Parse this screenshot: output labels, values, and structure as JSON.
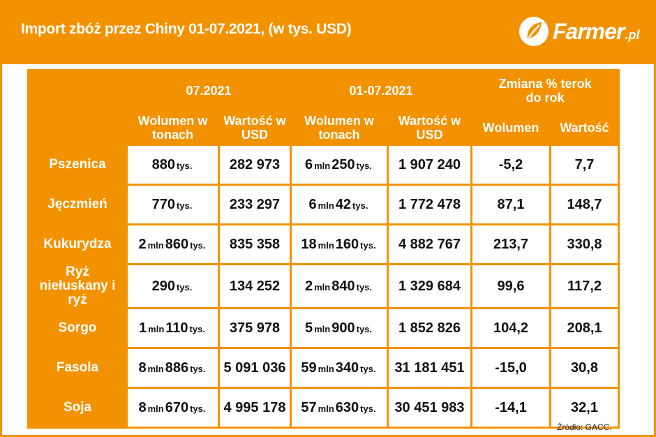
{
  "title": "Import zbóż przez Chiny 01-07.2021, (w tys. USD)",
  "logo": {
    "text": "Farmer",
    "suffix": ".pl",
    "icon": "leaf-icon"
  },
  "colors": {
    "accent": "#f39200",
    "cell": "#ffffff",
    "text": "#111111"
  },
  "chart_data": {
    "type": "table",
    "title": "Import zbóż przez Chiny 01-07.2021, (w tys. USD)",
    "column_groups": [
      {
        "label": "07.2021",
        "columns": [
          "Wolumen w tonach",
          "Wartość w USD"
        ]
      },
      {
        "label": "01-07.2021",
        "columns": [
          "Wolumen w tonach",
          "Wartość w USD"
        ]
      },
      {
        "label": "Zmiana % terok do rok",
        "columns": [
          "Wolumen",
          "Wartość"
        ]
      }
    ],
    "rows": [
      {
        "label": "Pszenica",
        "cells": [
          [
            {
              "n": "880",
              "u": "tys."
            }
          ],
          "282 973",
          [
            {
              "n": "6",
              "u": "mln"
            },
            {
              "n": "250",
              "u": "tys."
            }
          ],
          "1 907 240",
          "-5,2",
          "7,7"
        ]
      },
      {
        "label": "Jęczmień",
        "cells": [
          [
            {
              "n": "770",
              "u": "tys."
            }
          ],
          "233 297",
          [
            {
              "n": "6",
              "u": "mln"
            },
            {
              "n": "42",
              "u": "tys."
            }
          ],
          "1 772 478",
          "87,1",
          "148,7"
        ]
      },
      {
        "label": "Kukurydza",
        "cells": [
          [
            {
              "n": "2",
              "u": "mln"
            },
            {
              "n": "860",
              "u": "tys."
            }
          ],
          "835 358",
          [
            {
              "n": "18",
              "u": "mln"
            },
            {
              "n": "160",
              "u": "tys."
            }
          ],
          "4 882 767",
          "213,7",
          "330,8"
        ]
      },
      {
        "label": "Ryż niełuskany i ryż",
        "cells": [
          [
            {
              "n": "290",
              "u": "tys."
            }
          ],
          "134 252",
          [
            {
              "n": "2",
              "u": "mln"
            },
            {
              "n": "840",
              "u": "tys."
            }
          ],
          "1 329 684",
          "99,6",
          "117,2"
        ]
      },
      {
        "label": "Sorgo",
        "cells": [
          [
            {
              "n": "1",
              "u": "mln"
            },
            {
              "n": "110",
              "u": "tys."
            }
          ],
          "375 978",
          [
            {
              "n": "5",
              "u": "mln"
            },
            {
              "n": "900",
              "u": "tys."
            }
          ],
          "1 852 826",
          "104,2",
          "208,1"
        ]
      },
      {
        "label": "Fasola",
        "cells": [
          [
            {
              "n": "8",
              "u": "mln"
            },
            {
              "n": "886",
              "u": "tys."
            }
          ],
          "5 091 036",
          [
            {
              "n": "59",
              "u": "mln"
            },
            {
              "n": "340",
              "u": "tys."
            }
          ],
          "31 181 451",
          "-15,0",
          "30,8"
        ]
      },
      {
        "label": "Soja",
        "cells": [
          [
            {
              "n": "8",
              "u": "mln"
            },
            {
              "n": "670",
              "u": "tys."
            }
          ],
          "4 995 178",
          [
            {
              "n": "57",
              "u": "mln"
            },
            {
              "n": "630",
              "u": "tys."
            }
          ],
          "30 451 983",
          "-14,1",
          "32,1"
        ]
      }
    ],
    "source": "Źródło: GACC."
  }
}
